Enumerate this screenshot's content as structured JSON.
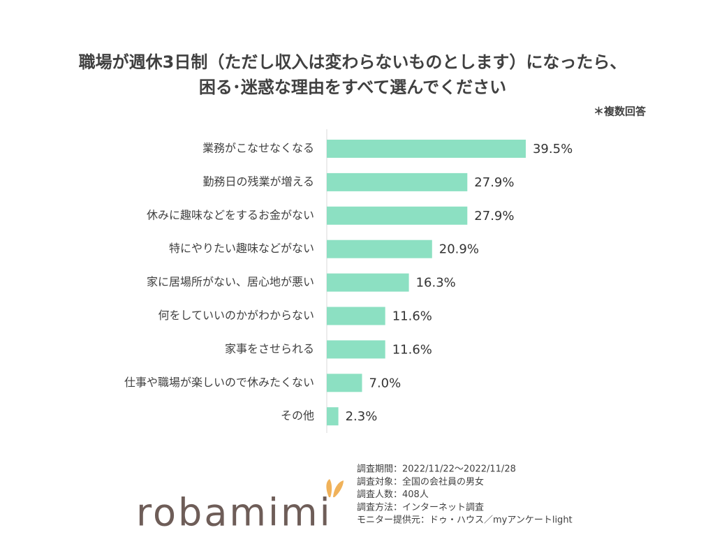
{
  "chart_data": {
    "type": "hbar",
    "title": [
      "職場が週休3日制（ただし収入は変わらないものとします）になったら、",
      "困る･迷惑な理由をすべて選んでください"
    ],
    "note": "＊複数回答",
    "categories": [
      "業務がこなせなくなる",
      "勤務日の残業が増える",
      "休みに趣味などをするお金がない",
      "特にやりたい趣味などがない",
      "家に居場所がない、居心地が悪い",
      "何をしていいのかがわからない",
      "家事をさせられる",
      "仕事や職場が楽しいので休みたくない",
      "その他"
    ],
    "values": [
      39.5,
      27.9,
      27.9,
      20.9,
      16.3,
      11.6,
      11.6,
      7.0,
      2.3
    ],
    "value_labels": [
      "39.5%",
      "27.9%",
      "27.9%",
      "20.9%",
      "16.3%",
      "11.6%",
      "11.6%",
      "7.0%",
      "2.3%"
    ],
    "color": "#8ce0c2"
  },
  "survey_info": [
    "調査期間：2022/11/22～2022/11/28",
    "調査対象：全国の会社員の男女",
    "調査人数：408人",
    "調査方法：インターネット調査",
    "モニター提供元：ドゥ・ハウス／myアンケートlight"
  ],
  "logo": "robamimi"
}
